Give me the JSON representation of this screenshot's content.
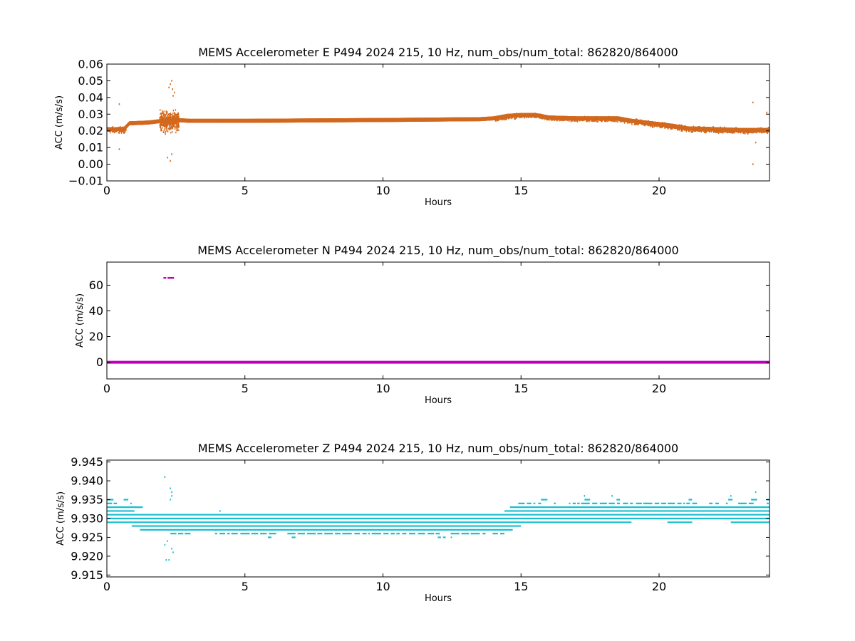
{
  "chart_data": [
    {
      "type": "scatter",
      "title": "MEMS Accelerometer E P494 2024 215, 10 Hz, num_obs/num_total: 862820/864000",
      "xlabel": "Hours",
      "ylabel": "ACC (m/s/s)",
      "xlim": [
        0,
        24
      ],
      "ylim": [
        -0.01,
        0.06
      ],
      "xticks": [
        0,
        5,
        10,
        15,
        20
      ],
      "xtick_labels": [
        "0",
        "5",
        "10",
        "15",
        "20"
      ],
      "yticks": [
        -0.01,
        0.0,
        0.01,
        0.02,
        0.03,
        0.04,
        0.05,
        0.06
      ],
      "ytick_labels": [
        "−0.01",
        "0.00",
        "0.01",
        "0.02",
        "0.03",
        "0.04",
        "0.05",
        "0.06"
      ],
      "color": "#d2691e",
      "grid": false,
      "series": [
        {
          "trend": {
            "x": [
              0,
              0.6,
              0.8,
              1.5,
              2.0,
              2.5,
              3.0,
              5,
              10,
              13.5,
              14.0,
              14.5,
              15.0,
              15.5,
              16,
              17,
              17.5,
              18.5,
              19.0,
              19.5,
              20,
              20.5,
              21,
              22,
              23,
              24
            ],
            "y": [
              0.021,
              0.021,
              0.0245,
              0.025,
              0.026,
              0.0265,
              0.026,
              0.026,
              0.0265,
              0.027,
              0.0275,
              0.029,
              0.0295,
              0.0295,
              0.028,
              0.0275,
              0.0275,
              0.0275,
              0.026,
              0.025,
              0.024,
              0.023,
              0.0215,
              0.021,
              0.0205,
              0.0205
            ]
          },
          "noise": [
            {
              "x": [
                0,
                0.7
              ],
              "spread": 0.0025
            },
            {
              "x": [
                0.7,
                1.9
              ],
              "spread": 0.0012
            },
            {
              "x": [
                1.9,
                2.6
              ],
              "spread": 0.008
            },
            {
              "x": [
                2.6,
                14.0
              ],
              "spread": 0.0012
            },
            {
              "x": [
                14.0,
                19.0
              ],
              "spread": 0.0018
            },
            {
              "x": [
                19.0,
                24.0
              ],
              "spread": 0.0022
            }
          ],
          "outliers": {
            "x": [
              0.45,
              0.45,
              2.25,
              2.3,
              2.35,
              2.38,
              2.4,
              2.45,
              2.2,
              2.3,
              2.35,
              23.4,
              23.4,
              23.5,
              23.9
            ],
            "y": [
              0.036,
              0.009,
              0.046,
              0.048,
              0.05,
              0.045,
              0.041,
              0.043,
              0.004,
              0.002,
              0.006,
              0.037,
              0.0,
              0.013,
              0.031
            ]
          }
        }
      ]
    },
    {
      "type": "scatter",
      "title": "MEMS Accelerometer N P494 2024 215, 10 Hz, num_obs/num_total: 862820/864000",
      "xlabel": "Hours",
      "ylabel": "ACC (m/s/s)",
      "xlim": [
        0,
        24
      ],
      "ylim": [
        -13,
        78
      ],
      "xticks": [
        0,
        5,
        10,
        15,
        20
      ],
      "xtick_labels": [
        "0",
        "5",
        "10",
        "15",
        "20"
      ],
      "yticks": [
        0,
        20,
        40,
        60
      ],
      "ytick_labels": [
        "0",
        "20",
        "40",
        "60"
      ],
      "color": "#bf00bf",
      "grid": false,
      "series": [
        {
          "baseline": {
            "x": [
              0,
              24
            ],
            "y": 0
          },
          "outliers": {
            "x": [
              2.1,
              2.25,
              2.32,
              2.38
            ],
            "y": [
              65.7,
              65.7,
              65.7,
              65.7
            ]
          }
        }
      ]
    },
    {
      "type": "scatter",
      "title": "MEMS Accelerometer Z P494 2024 215, 10 Hz, num_obs/num_total: 862820/864000",
      "xlabel": "Hours",
      "ylabel": "ACC (m/s/s)",
      "xlim": [
        0,
        24
      ],
      "ylim": [
        9.9145,
        9.9455
      ],
      "xticks": [
        0,
        5,
        10,
        15,
        20
      ],
      "xtick_labels": [
        "0",
        "5",
        "10",
        "15",
        "20"
      ],
      "yticks": [
        9.915,
        9.92,
        9.925,
        9.93,
        9.935,
        9.94,
        9.945
      ],
      "ytick_labels": [
        "9.915",
        "9.920",
        "9.925",
        "9.930",
        "9.935",
        "9.940",
        "9.945"
      ],
      "color": "#17becf",
      "grid": false,
      "series": [
        {
          "bands": [
            {
              "y": 9.935,
              "x_ranges": [
                [
                  0,
                  0.8
                ],
                [
                  15.2,
                  16.2
                ],
                [
                  17.3,
                  18.8
                ],
                [
                  20.8,
                  24
                ]
              ],
              "density": 0.55
            },
            {
              "y": 9.934,
              "x_ranges": [
                [
                  0,
                  0.9
                ],
                [
                  14.9,
                  24
                ]
              ],
              "density": 0.8
            },
            {
              "y": 9.933,
              "x_ranges": [
                [
                  0,
                  1.3
                ],
                [
                  14.6,
                  24
                ]
              ],
              "density": 0.95
            },
            {
              "y": 9.932,
              "x_ranges": [
                [
                  0,
                  1.0
                ],
                [
                  14.4,
                  24
                ]
              ],
              "density": 1.0
            },
            {
              "y": 9.931,
              "x_ranges": [
                [
                  0,
                  24
                ]
              ],
              "density": 1.0
            },
            {
              "y": 9.93,
              "x_ranges": [
                [
                  0,
                  24
                ]
              ],
              "density": 1.0
            },
            {
              "y": 9.929,
              "x_ranges": [
                [
                  0,
                  19.0
                ],
                [
                  20.3,
                  21.2
                ],
                [
                  22.6,
                  24
                ]
              ],
              "density": 1.0
            },
            {
              "y": 9.928,
              "x_ranges": [
                [
                  0.9,
                  15.0
                ]
              ],
              "density": 1.0
            },
            {
              "y": 9.927,
              "x_ranges": [
                [
                  1.2,
                  14.7
                ]
              ],
              "density": 1.0
            },
            {
              "y": 9.926,
              "x_ranges": [
                [
                  2.3,
                  14.4
                ]
              ],
              "density": 0.85
            },
            {
              "y": 9.925,
              "x_ranges": [
                [
                  5.0,
                  12.5
                ]
              ],
              "density": 0.25
            },
            {
              "y": 9.924,
              "x_ranges": [
                [
                  8.0,
                  11.8
                ]
              ],
              "density": 0.08
            }
          ],
          "outliers": {
            "x": [
              2.1,
              2.3,
              2.35,
              2.35,
              2.3,
              2.1,
              2.2,
              2.35,
              2.4,
              2.25,
              2.15,
              4.1,
              23.5,
              22.6,
              17.3,
              18.3
            ],
            "y": [
              9.941,
              9.938,
              9.937,
              9.936,
              9.935,
              9.923,
              9.924,
              9.922,
              9.921,
              9.919,
              9.919,
              9.932,
              9.937,
              9.936,
              9.936,
              9.936
            ]
          }
        }
      ]
    }
  ]
}
